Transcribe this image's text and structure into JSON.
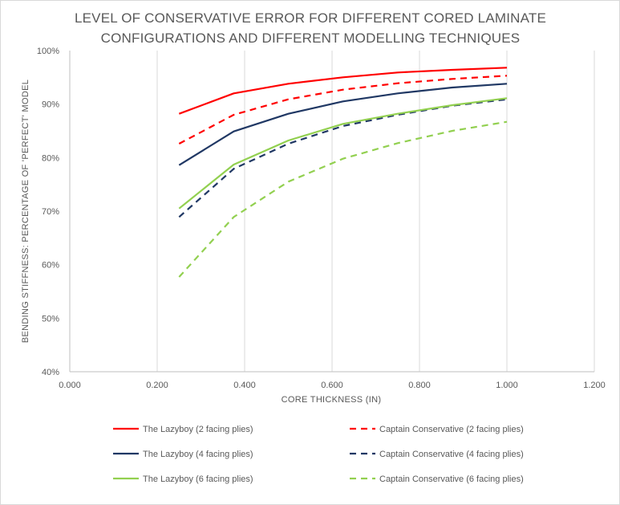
{
  "chart_data": {
    "type": "line",
    "title_lines": [
      "LEVEL OF CONSERVATIVE ERROR FOR DIFFERENT CORED LAMINATE",
      "CONFIGURATIONS AND DIFFERENT MODELLING TECHNIQUES"
    ],
    "xlabel": "CORE THICKNESS (IN)",
    "ylabel": "BENDING STIFFNESS: PERCENTAGE  OF 'PERFECT' MODEL",
    "xlim": [
      0,
      1.2
    ],
    "ylim": [
      40,
      100
    ],
    "x_ticks": [
      "0.000",
      "0.200",
      "0.400",
      "0.600",
      "0.800",
      "1.000",
      "1.200"
    ],
    "x_tick_values": [
      0,
      0.2,
      0.4,
      0.6,
      0.8,
      1.0,
      1.2
    ],
    "y_ticks": [
      "40%",
      "50%",
      "60%",
      "70%",
      "80%",
      "90%",
      "100%"
    ],
    "y_tick_values": [
      40,
      50,
      60,
      70,
      80,
      90,
      100
    ],
    "grid": "vertical",
    "legend_position": "bottom",
    "x": [
      0.25,
      0.375,
      0.5,
      0.625,
      0.75,
      0.875,
      1.0
    ],
    "series": [
      {
        "name": "The Lazyboy (2 facing plies)",
        "color": "#ff0000",
        "dash": "solid",
        "values": [
          88.2,
          92.0,
          93.8,
          95.0,
          95.9,
          96.4,
          96.8
        ]
      },
      {
        "name": "Captain Conservative (2 facing plies)",
        "color": "#ff0000",
        "dash": "dashed",
        "values": [
          82.6,
          88.0,
          90.9,
          92.7,
          93.9,
          94.7,
          95.3
        ]
      },
      {
        "name": "The Lazyboy (4 facing plies)",
        "color": "#203864",
        "dash": "solid",
        "values": [
          78.6,
          84.9,
          88.2,
          90.5,
          92.0,
          93.1,
          93.8
        ]
      },
      {
        "name": "Captain Conservative (4 facing plies)",
        "color": "#203864",
        "dash": "dashed",
        "values": [
          68.9,
          77.9,
          82.6,
          85.9,
          88.0,
          89.7,
          90.9
        ]
      },
      {
        "name": "The Lazyboy (6 facing plies)",
        "color": "#92d050",
        "dash": "solid",
        "values": [
          70.5,
          78.7,
          83.2,
          86.3,
          88.2,
          89.8,
          91.1
        ]
      },
      {
        "name": "Captain Conservative (6 facing plies)",
        "color": "#92d050",
        "dash": "dashed",
        "values": [
          57.7,
          68.9,
          75.5,
          79.8,
          82.7,
          85.0,
          86.7
        ]
      }
    ]
  }
}
